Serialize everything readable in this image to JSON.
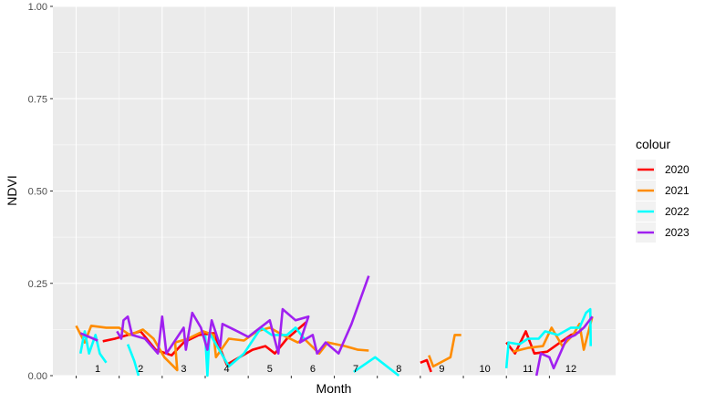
{
  "chart_data": {
    "type": "line",
    "xlabel": "Month",
    "ylabel": "NDVI",
    "ylim": [
      0,
      1
    ],
    "xlim": [
      1,
      12.999
    ],
    "y_ticks": [
      "0.00",
      "0.25",
      "0.50",
      "0.75",
      "1.00"
    ],
    "y_tick_values": [
      0,
      0.25,
      0.5,
      0.75,
      1.0
    ],
    "month_labels": [
      "1",
      "2",
      "3",
      "4",
      "5",
      "6",
      "7",
      "8",
      "9",
      "10",
      "11",
      "12"
    ],
    "grid": true,
    "background": "#ebebeb",
    "legend": {
      "title": "colour",
      "placement": "right",
      "entries": [
        {
          "label": "2020",
          "color": "#ff0000"
        },
        {
          "label": "2021",
          "color": "#ff8c00"
        },
        {
          "label": "2022",
          "color": "#00ffff"
        },
        {
          "label": "2023",
          "color": "#a020f0"
        }
      ]
    },
    "series": [
      {
        "name": "2020",
        "color": "#ff0000",
        "segments": [
          [
            [
              1.62,
              0.093
            ],
            [
              1.9,
              0.1
            ],
            [
              2.2,
              0.11
            ],
            [
              2.5,
              0.12
            ],
            [
              2.85,
              0.07
            ],
            [
              3.22,
              0.055
            ],
            [
              3.5,
              0.09
            ],
            [
              3.85,
              0.11
            ],
            [
              4.2,
              0.115
            ],
            [
              4.5,
              0.03
            ],
            [
              4.8,
              0.05
            ],
            [
              5.1,
              0.07
            ],
            [
              5.4,
              0.08
            ],
            [
              5.62,
              0.06
            ],
            [
              5.9,
              0.1
            ],
            [
              6.1,
              0.12
            ],
            [
              6.35,
              0.145
            ]
          ],
          [
            [
              9.0,
              0.035
            ],
            [
              9.15,
              0.042
            ],
            [
              9.25,
              0.01
            ]
          ],
          [
            [
              11.0,
              0.09
            ],
            [
              11.2,
              0.06
            ],
            [
              11.45,
              0.12
            ],
            [
              11.65,
              0.06
            ],
            [
              11.95,
              0.065
            ],
            [
              12.25,
              0.09
            ],
            [
              12.5,
              0.11
            ],
            [
              12.75,
              0.12
            ]
          ]
        ]
      },
      {
        "name": "2021",
        "color": "#ff8c00",
        "segments": [
          [
            [
              1.0,
              0.135
            ],
            [
              1.2,
              0.09
            ],
            [
              1.35,
              0.135
            ],
            [
              1.7,
              0.13
            ],
            [
              2.0,
              0.13
            ],
            [
              2.25,
              0.11
            ],
            [
              2.55,
              0.125
            ],
            [
              2.8,
              0.1
            ],
            [
              3.05,
              0.05
            ],
            [
              3.35,
              0.015
            ],
            [
              3.3,
              0.09
            ],
            [
              3.6,
              0.1
            ],
            [
              3.95,
              0.12
            ],
            [
              4.2,
              0.11
            ],
            [
              4.25,
              0.05
            ],
            [
              4.55,
              0.1
            ],
            [
              4.9,
              0.095
            ],
            [
              5.2,
              0.12
            ],
            [
              5.5,
              0.13
            ],
            [
              5.8,
              0.11
            ],
            [
              6.15,
              0.09
            ],
            [
              6.3,
              0.1
            ],
            [
              6.65,
              0.06
            ],
            [
              6.85,
              0.09
            ],
            [
              7.25,
              0.08
            ],
            [
              7.55,
              0.07
            ],
            [
              7.8,
              0.068
            ]
          ],
          [
            [
              9.2,
              0.055
            ],
            [
              9.3,
              0.025
            ],
            [
              9.7,
              0.05
            ],
            [
              9.8,
              0.11
            ],
            [
              9.95,
              0.11
            ]
          ],
          [
            [
              11.15,
              0.065
            ],
            [
              11.5,
              0.075
            ],
            [
              11.85,
              0.08
            ],
            [
              12.05,
              0.13
            ],
            [
              12.3,
              0.08
            ],
            [
              12.55,
              0.11
            ],
            [
              12.7,
              0.14
            ],
            [
              12.8,
              0.07
            ],
            [
              12.999,
              0.16
            ]
          ]
        ]
      },
      {
        "name": "2022",
        "color": "#00ffff",
        "segments": [
          [
            [
              1.1,
              0.06
            ],
            [
              1.2,
              0.12
            ],
            [
              1.3,
              0.06
            ],
            [
              1.45,
              0.11
            ],
            [
              1.55,
              0.06
            ],
            [
              1.7,
              0.035
            ]
          ],
          [
            [
              2.2,
              0.085
            ],
            [
              2.35,
              0.04
            ],
            [
              2.45,
              0.0
            ]
          ],
          [
            [
              4.0,
              0.11
            ],
            [
              4.05,
              0.0
            ],
            [
              4.1,
              0.115
            ],
            [
              4.3,
              0.075
            ],
            [
              4.55,
              0.025
            ],
            [
              4.9,
              0.06
            ],
            [
              5.3,
              0.13
            ],
            [
              5.55,
              0.11
            ],
            [
              5.9,
              0.11
            ],
            [
              6.1,
              0.13
            ],
            [
              6.3,
              0.1
            ]
          ],
          [
            [
              7.45,
              0.01
            ],
            [
              7.95,
              0.05
            ],
            [
              8.5,
              0.0
            ]
          ],
          [
            [
              11.0,
              0.02
            ],
            [
              11.05,
              0.09
            ],
            [
              11.3,
              0.085
            ],
            [
              11.5,
              0.1
            ],
            [
              11.75,
              0.1
            ],
            [
              11.9,
              0.12
            ],
            [
              12.2,
              0.11
            ],
            [
              12.5,
              0.13
            ],
            [
              12.7,
              0.13
            ],
            [
              12.85,
              0.17
            ],
            [
              12.95,
              0.18
            ],
            [
              12.96,
              0.08
            ]
          ]
        ]
      },
      {
        "name": "2023",
        "color": "#a020f0",
        "segments": [
          [
            [
              1.1,
              0.115
            ],
            [
              1.5,
              0.095
            ]
          ],
          [
            [
              1.95,
              0.12
            ],
            [
              2.05,
              0.1
            ],
            [
              2.1,
              0.15
            ],
            [
              2.2,
              0.16
            ],
            [
              2.3,
              0.11
            ],
            [
              2.6,
              0.1
            ],
            [
              2.9,
              0.06
            ],
            [
              3.0,
              0.16
            ],
            [
              3.1,
              0.06
            ],
            [
              3.5,
              0.13
            ],
            [
              3.55,
              0.07
            ],
            [
              3.7,
              0.17
            ],
            [
              3.9,
              0.13
            ],
            [
              4.05,
              0.07
            ],
            [
              4.15,
              0.15
            ],
            [
              4.35,
              0.08
            ],
            [
              4.4,
              0.14
            ],
            [
              4.75,
              0.12
            ],
            [
              5.0,
              0.105
            ],
            [
              5.5,
              0.15
            ],
            [
              5.7,
              0.06
            ],
            [
              5.8,
              0.18
            ],
            [
              6.1,
              0.15
            ],
            [
              6.4,
              0.16
            ],
            [
              6.2,
              0.09
            ],
            [
              6.5,
              0.11
            ],
            [
              6.6,
              0.06
            ],
            [
              6.8,
              0.09
            ],
            [
              7.1,
              0.06
            ],
            [
              7.4,
              0.14
            ],
            [
              7.8,
              0.27
            ]
          ],
          [
            [
              11.7,
              0.0
            ],
            [
              11.8,
              0.06
            ],
            [
              12.0,
              0.05
            ],
            [
              12.1,
              0.02
            ],
            [
              12.4,
              0.1
            ],
            [
              12.6,
              0.11
            ],
            [
              12.8,
              0.13
            ],
            [
              12.999,
              0.16
            ]
          ]
        ]
      }
    ]
  }
}
